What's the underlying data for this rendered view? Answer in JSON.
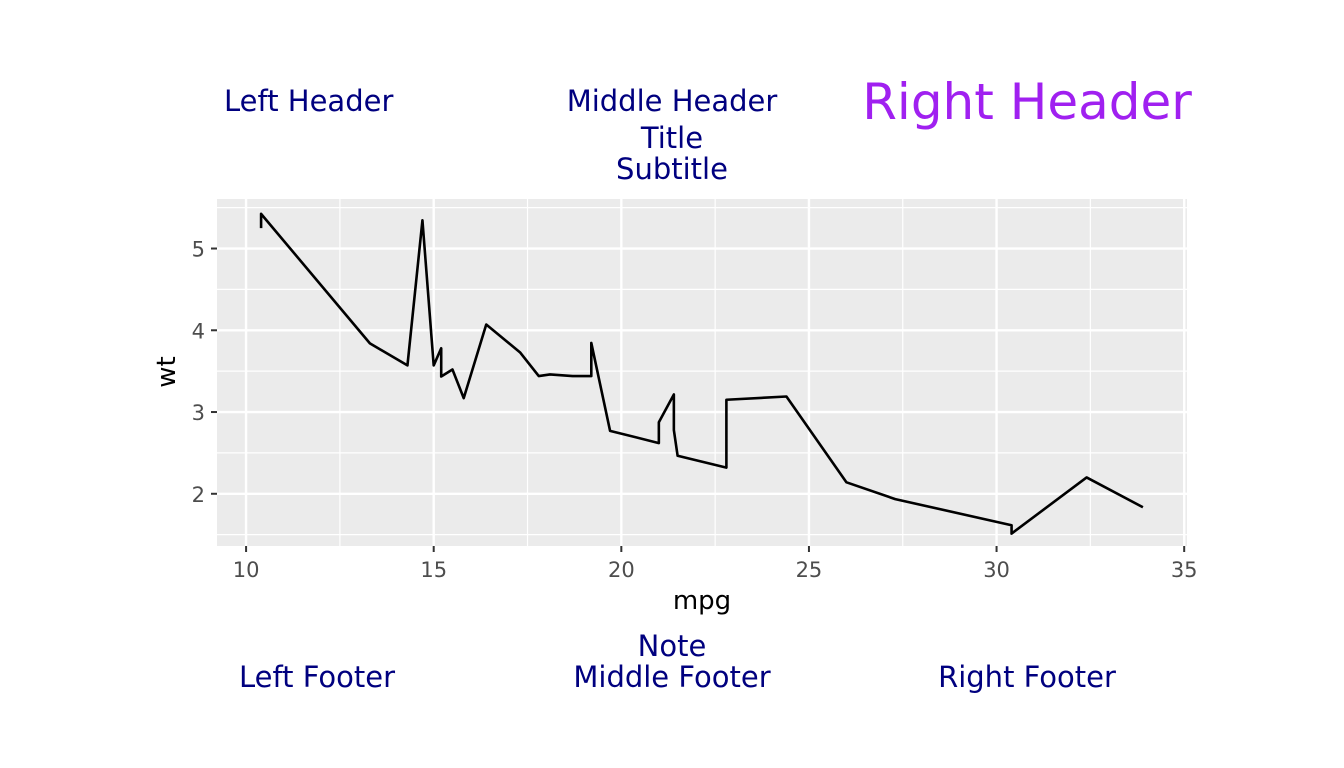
{
  "page": {
    "left_header": "Left Header",
    "middle_header": "Middle Header",
    "right_header": "Right Header",
    "title": "Title",
    "subtitle": "Subtitle",
    "note": "Note",
    "left_footer": "Left Footer",
    "middle_footer": "Middle Footer",
    "right_footer": "Right Footer"
  },
  "colors": {
    "text": "#00007f",
    "right_header": "#a020f0",
    "panel_background": "#ebebeb",
    "gridline": "#ffffff",
    "line": "#000000",
    "tick_label": "#4d4d4d"
  },
  "chart_data": {
    "type": "line",
    "xlabel": "mpg",
    "ylabel": "wt",
    "xlim": [
      9.225,
      35.075
    ],
    "ylim": [
      1.3612,
      5.6058
    ],
    "x_ticks": [
      10,
      15,
      20,
      25,
      30,
      35
    ],
    "y_ticks": [
      2,
      3,
      4,
      5
    ],
    "grid": true,
    "series": [
      {
        "x": [
          10.4,
          10.4,
          13.3,
          14.3,
          14.7,
          15.0,
          15.2,
          15.2,
          15.5,
          15.8,
          16.4,
          17.3,
          17.8,
          18.1,
          18.7,
          19.2,
          19.2,
          19.7,
          21.0,
          21.0,
          21.4,
          21.4,
          21.5,
          22.8,
          22.8,
          24.4,
          26.0,
          27.3,
          30.4,
          30.4,
          32.4,
          33.9
        ],
        "y": [
          5.25,
          5.424,
          3.84,
          3.57,
          5.345,
          3.57,
          3.78,
          3.435,
          3.52,
          3.17,
          4.07,
          3.73,
          3.44,
          3.46,
          3.44,
          3.44,
          3.845,
          2.77,
          2.62,
          2.875,
          3.215,
          2.78,
          2.465,
          2.32,
          3.15,
          3.19,
          2.14,
          1.935,
          1.615,
          1.513,
          2.2,
          1.835
        ]
      }
    ]
  }
}
